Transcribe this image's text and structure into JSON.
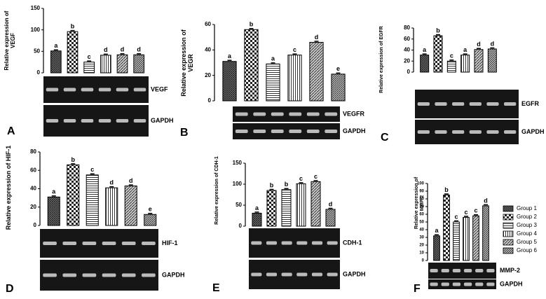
{
  "chart_data": [
    {
      "type": "bar",
      "panel": "A",
      "y_label": "Relative expression of VEGF",
      "values": [
        51,
        96,
        25,
        41,
        42,
        42
      ],
      "annotations": [
        "a",
        "b",
        "c",
        "d",
        "d",
        "d"
      ],
      "ylim": [
        0,
        150
      ],
      "yticks": [
        0,
        50,
        100,
        150
      ],
      "gel_labels": [
        "VEGF",
        "GAPDH"
      ]
    },
    {
      "type": "bar",
      "panel": "B",
      "y_label": "Relative expression of VEGR",
      "values": [
        31,
        56,
        29,
        36,
        46,
        21
      ],
      "annotations": [
        "a",
        "b",
        "a",
        "c",
        "d",
        "e"
      ],
      "ylim": [
        0,
        60
      ],
      "yticks": [
        0,
        20,
        40,
        60
      ],
      "gel_labels": [
        "VEGFR",
        "GAPDH"
      ]
    },
    {
      "type": "bar",
      "panel": "C",
      "y_label": "Relative expression of EGFR",
      "values": [
        31,
        66,
        20,
        31,
        41,
        42
      ],
      "annotations": [
        "a",
        "b",
        "c",
        "a",
        "d",
        "d"
      ],
      "ylim": [
        0,
        80
      ],
      "yticks": [
        0,
        20,
        40,
        60,
        80
      ],
      "gel_labels": [
        "EGFR",
        "GAPDH"
      ]
    },
    {
      "type": "bar",
      "panel": "D",
      "y_label": "Relative expression of HIF-1",
      "values": [
        31,
        66,
        55,
        41,
        43,
        12
      ],
      "annotations": [
        "a",
        "b",
        "c",
        "d",
        "d",
        "e"
      ],
      "ylim": [
        0,
        80
      ],
      "yticks": [
        0,
        20,
        40,
        60,
        80
      ],
      "gel_labels": [
        "HIF-1",
        "GAPDH"
      ]
    },
    {
      "type": "bar",
      "panel": "E",
      "y_label": "Relative expression of CDH-1",
      "values": [
        31,
        85,
        87,
        101,
        106,
        40
      ],
      "annotations": [
        "a",
        "b",
        "b",
        "c",
        "c",
        "d"
      ],
      "ylim": [
        0,
        150
      ],
      "yticks": [
        0,
        50,
        100,
        150
      ],
      "gel_labels": [
        "CDH-1",
        "GAPDH"
      ]
    },
    {
      "type": "bar",
      "panel": "F",
      "y_label": "Relative expression of MMP-2",
      "values": [
        32,
        85,
        50,
        56,
        58,
        71
      ],
      "annotations": [
        "a",
        "b",
        "c",
        "c",
        "c",
        "d"
      ],
      "ylim": [
        0,
        100
      ],
      "yticks": [
        0,
        10,
        20,
        30,
        40,
        50,
        60,
        70,
        80,
        90,
        100
      ],
      "gel_labels": [
        "MMP-2",
        "GAPDH"
      ]
    }
  ],
  "legend": [
    "Group 1",
    "Group 2",
    "Group 3",
    "Group 4",
    "Group 5",
    "Group 6"
  ]
}
